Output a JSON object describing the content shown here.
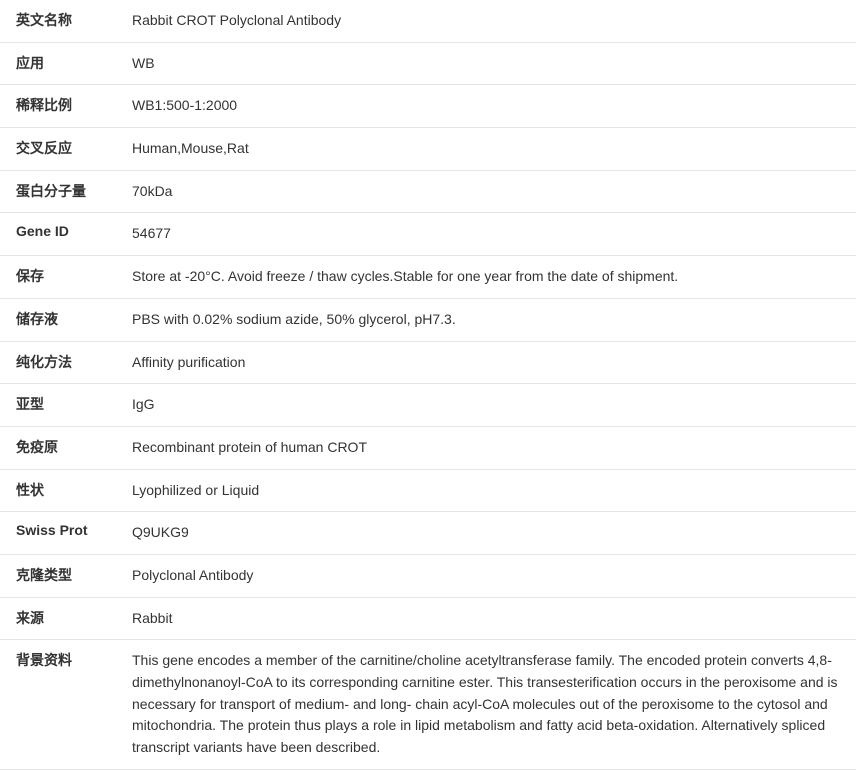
{
  "rows": [
    {
      "label": "英文名称",
      "value": "Rabbit CROT Polyclonal Antibody"
    },
    {
      "label": "应用",
      "value": "WB"
    },
    {
      "label": "稀释比例",
      "value": "WB1:500-1:2000"
    },
    {
      "label": "交叉反应",
      "value": "Human,Mouse,Rat"
    },
    {
      "label": "蛋白分子量",
      "value": "70kDa"
    },
    {
      "label": "Gene ID",
      "value": "54677"
    },
    {
      "label": "保存",
      "value": "Store at -20°C. Avoid freeze / thaw cycles.Stable for one year from the date of shipment."
    },
    {
      "label": "储存液",
      "value": "PBS with 0.02% sodium azide, 50% glycerol, pH7.3."
    },
    {
      "label": "纯化方法",
      "value": "Affinity purification"
    },
    {
      "label": "亚型",
      "value": "IgG"
    },
    {
      "label": "免疫原",
      "value": "Recombinant protein of human CROT"
    },
    {
      "label": "性状",
      "value": "Lyophilized or Liquid"
    },
    {
      "label": "Swiss Prot",
      "value": "Q9UKG9"
    },
    {
      "label": "克隆类型",
      "value": "Polyclonal Antibody"
    },
    {
      "label": "来源",
      "value": "Rabbit"
    },
    {
      "label": "背景资料",
      "value": "This gene encodes a member of the carnitine/choline acetyltransferase family. The encoded protein converts 4,8-dimethylnonanoyl-CoA to its corresponding carnitine ester. This transesterification occurs in the peroxisome and is necessary for transport of medium- and long- chain acyl-CoA molecules out of the peroxisome to the cytosol and mitochondria. The protein thus plays a role in lipid metabolism and fatty acid beta-oxidation. Alternatively spliced transcript variants have been described."
    }
  ],
  "style": {
    "border_color": "#e5e5e5",
    "text_color": "#333333",
    "background_color": "#ffffff",
    "label_fontsize": 14,
    "value_fontsize": 14,
    "label_weight": "bold"
  }
}
